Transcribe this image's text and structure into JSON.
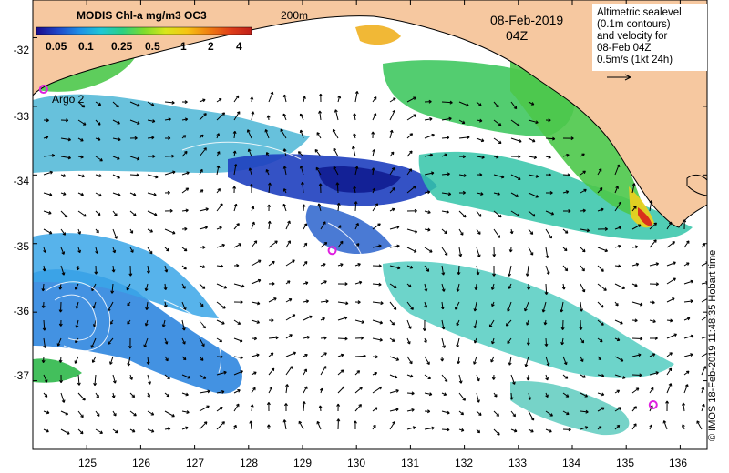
{
  "colorbar": {
    "title": "MODIS Chl-a mg/m3 OC3",
    "ticks": [
      "0.05",
      "0.1",
      "0.25",
      "0.5",
      "1",
      "2",
      "4"
    ],
    "colors": [
      "#1a0a8c",
      "#1e46c8",
      "#1f8fe6",
      "#1fc7d6",
      "#2ad082",
      "#7ddc2c",
      "#d8e61c",
      "#f6c414",
      "#f08010",
      "#e0401a",
      "#c0201a"
    ]
  },
  "depth_contour_label": "200m",
  "date": "08-Feb-2019",
  "time": "04Z",
  "legend": {
    "lines": [
      "Altimetric sealevel",
      "(0.1m contours)",
      "and velocity for",
      "08-Feb 04Z",
      "0.5m/s (1kt 24h)"
    ]
  },
  "floats": [
    {
      "label": "Argo 2",
      "lon": 124.2,
      "lat": -32.75
    },
    {
      "label": "",
      "lon": 129.55,
      "lat": -35.1
    },
    {
      "label": "",
      "lon": 135.5,
      "lat": -37.35
    }
  ],
  "axes": {
    "x_ticks": [
      "125",
      "126",
      "127",
      "128",
      "129",
      "130",
      "131",
      "132",
      "133",
      "134",
      "135",
      "136"
    ],
    "y_ticks": [
      "-32",
      "-33",
      "-34",
      "-35",
      "-36",
      "-37"
    ],
    "xlim": [
      124.0,
      136.5
    ],
    "ylim": [
      -38.0,
      -31.45
    ]
  },
  "colors": {
    "land": "#f6c8a0",
    "ocean_blank": "#ffffff",
    "arrow": "#000000",
    "float_marker": "#e020e0"
  },
  "credit": "© IMOS 18-Feb-2019 11:48:35 Hobart time"
}
